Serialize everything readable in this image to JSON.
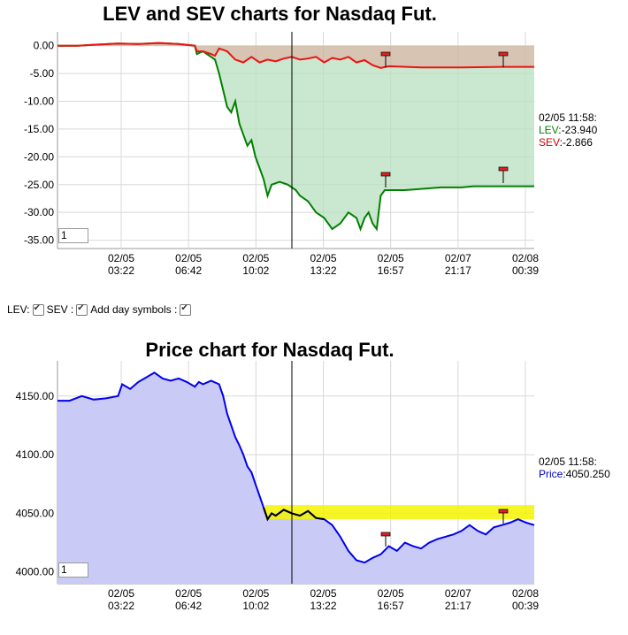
{
  "chart_data": [
    {
      "type": "area",
      "title": "LEV and SEV charts for Nasdaq Fut.",
      "yticks": [
        "0.00",
        "-5.00",
        "-10.00",
        "-15.00",
        "-20.00",
        "-25.00",
        "-30.00",
        "-35.00"
      ],
      "ylim": [
        -36.5,
        2.5
      ],
      "xticks": [
        {
          "date": "02/05",
          "time": "03:22"
        },
        {
          "date": "02/05",
          "time": "06:42"
        },
        {
          "date": "02/05",
          "time": "10:02"
        },
        {
          "date": "02/05",
          "time": "13:22"
        },
        {
          "date": "02/05",
          "time": "16:57"
        },
        {
          "date": "02/07",
          "time": "21:17"
        },
        {
          "date": "02/08",
          "time": "00:39"
        }
      ],
      "grid": true,
      "series": [
        {
          "name": "LEV",
          "color": "#008000",
          "points": [
            [
              0,
              0
            ],
            [
              5,
              0
            ],
            [
              10,
              0.2
            ],
            [
              15,
              0.4
            ],
            [
              20,
              0.3
            ],
            [
              25,
              0.5
            ],
            [
              30,
              0.3
            ],
            [
              34,
              0
            ],
            [
              34.5,
              -1.5
            ],
            [
              36,
              -1
            ],
            [
              38,
              -2
            ],
            [
              39,
              -2.5
            ],
            [
              40,
              -5
            ],
            [
              41,
              -8
            ],
            [
              42,
              -11
            ],
            [
              43,
              -12
            ],
            [
              44,
              -10
            ],
            [
              45,
              -14
            ],
            [
              46,
              -16
            ],
            [
              47,
              -18
            ],
            [
              48,
              -17
            ],
            [
              49,
              -20
            ],
            [
              50,
              -22
            ],
            [
              51,
              -24
            ],
            [
              52,
              -27
            ],
            [
              53,
              -25
            ],
            [
              55,
              -24.5
            ],
            [
              57,
              -25
            ],
            [
              59,
              -26
            ],
            [
              60,
              -27
            ],
            [
              62,
              -28
            ],
            [
              64,
              -30
            ],
            [
              66,
              -31
            ],
            [
              68,
              -33
            ],
            [
              70,
              -32
            ],
            [
              72,
              -30
            ],
            [
              74,
              -31
            ],
            [
              75,
              -33
            ],
            [
              76,
              -31
            ],
            [
              77,
              -30
            ],
            [
              78,
              -32
            ],
            [
              79,
              -33
            ],
            [
              80,
              -27
            ],
            [
              81,
              -26
            ],
            [
              86,
              -26
            ],
            [
              95,
              -25.5
            ],
            [
              100,
              -25.5
            ],
            [
              103,
              -25.3
            ],
            [
              108,
              -25.3
            ],
            [
              118,
              -25.3
            ]
          ]
        },
        {
          "name": "SEV",
          "color": "#ee1111",
          "points": [
            [
              0,
              0
            ],
            [
              5,
              0
            ],
            [
              10,
              0.2
            ],
            [
              15,
              0.4
            ],
            [
              20,
              0.3
            ],
            [
              25,
              0.5
            ],
            [
              30,
              0.3
            ],
            [
              34,
              0
            ],
            [
              34.5,
              -1
            ],
            [
              36,
              -1
            ],
            [
              38,
              -1.5
            ],
            [
              39,
              -1.8
            ],
            [
              40,
              -0.5
            ],
            [
              42,
              -1
            ],
            [
              44,
              -2.5
            ],
            [
              46,
              -3
            ],
            [
              48,
              -2
            ],
            [
              50,
              -3
            ],
            [
              52,
              -2.5
            ],
            [
              54,
              -2.8
            ],
            [
              56,
              -2.3
            ],
            [
              58,
              -2
            ],
            [
              60,
              -2.5
            ],
            [
              62,
              -2.3
            ],
            [
              64,
              -2
            ],
            [
              66,
              -3
            ],
            [
              68,
              -2.2
            ],
            [
              70,
              -2.5
            ],
            [
              72,
              -2
            ],
            [
              74,
              -3
            ],
            [
              76,
              -2.6
            ],
            [
              78,
              -3.5
            ],
            [
              80,
              -4
            ],
            [
              82,
              -3.7
            ],
            [
              90,
              -3.9
            ],
            [
              100,
              -3.9
            ],
            [
              110,
              -3.8
            ],
            [
              118,
              -3.8
            ]
          ]
        }
      ],
      "readout": {
        "time": "02/05 11:58:",
        "LEV": "-23.940",
        "SEV": "-2.866"
      }
    },
    {
      "type": "area",
      "title": "Price chart for Nasdaq Fut.",
      "yticks": [
        "4150.00",
        "4100.00",
        "4050.00",
        "4000.00"
      ],
      "ylim": [
        3990,
        4180
      ],
      "xticks": [
        {
          "date": "02/05",
          "time": "03:22"
        },
        {
          "date": "02/05",
          "time": "06:42"
        },
        {
          "date": "02/05",
          "time": "10:02"
        },
        {
          "date": "02/05",
          "time": "13:22"
        },
        {
          "date": "02/05",
          "time": "16:57"
        },
        {
          "date": "02/07",
          "time": "21:17"
        },
        {
          "date": "02/08",
          "time": "00:39"
        }
      ],
      "grid": true,
      "series": [
        {
          "name": "Price",
          "color": "#0000ee",
          "points": [
            [
              0,
              4146
            ],
            [
              3,
              4146
            ],
            [
              6,
              4150
            ],
            [
              9,
              4147
            ],
            [
              12,
              4148
            ],
            [
              15,
              4150
            ],
            [
              16,
              4160
            ],
            [
              18,
              4156
            ],
            [
              20,
              4162
            ],
            [
              22,
              4166
            ],
            [
              24,
              4170
            ],
            [
              26,
              4165
            ],
            [
              28,
              4163
            ],
            [
              30,
              4165
            ],
            [
              32,
              4162
            ],
            [
              34,
              4158
            ],
            [
              35,
              4162
            ],
            [
              36,
              4160
            ],
            [
              38,
              4163
            ],
            [
              40,
              4160
            ],
            [
              41,
              4150
            ],
            [
              42,
              4135
            ],
            [
              43,
              4125
            ],
            [
              44,
              4115
            ],
            [
              45,
              4108
            ],
            [
              46,
              4100
            ],
            [
              47,
              4090
            ],
            [
              48,
              4085
            ],
            [
              49,
              4075
            ],
            [
              50,
              4065
            ],
            [
              51,
              4055
            ],
            [
              52,
              4045
            ],
            [
              53,
              4050
            ],
            [
              54,
              4048
            ],
            [
              56,
              4053
            ],
            [
              58,
              4050
            ],
            [
              60,
              4048
            ],
            [
              62,
              4052
            ],
            [
              64,
              4046
            ],
            [
              66,
              4045
            ],
            [
              68,
              4040
            ],
            [
              70,
              4030
            ],
            [
              72,
              4018
            ],
            [
              74,
              4010
            ],
            [
              76,
              4008
            ],
            [
              78,
              4012
            ],
            [
              80,
              4015
            ],
            [
              82,
              4022
            ],
            [
              84,
              4018
            ],
            [
              86,
              4025
            ],
            [
              88,
              4022
            ],
            [
              90,
              4020
            ],
            [
              92,
              4025
            ],
            [
              94,
              4028
            ],
            [
              96,
              4030
            ],
            [
              98,
              4032
            ],
            [
              100,
              4035
            ],
            [
              102,
              4040
            ],
            [
              104,
              4035
            ],
            [
              106,
              4032
            ],
            [
              108,
              4038
            ],
            [
              110,
              4040
            ],
            [
              112,
              4042
            ],
            [
              114,
              4045
            ],
            [
              116,
              4042
            ],
            [
              118,
              4040
            ]
          ]
        }
      ],
      "readout": {
        "time": "02/05 11:58:",
        "Price": "4050.250"
      }
    }
  ],
  "controls": {
    "lev_label": "LEV:",
    "sev_label": "SEV :",
    "day_symbols_label": "Add day symbols :"
  },
  "inputs": {
    "chart1_value": "1",
    "chart2_value": "1"
  }
}
